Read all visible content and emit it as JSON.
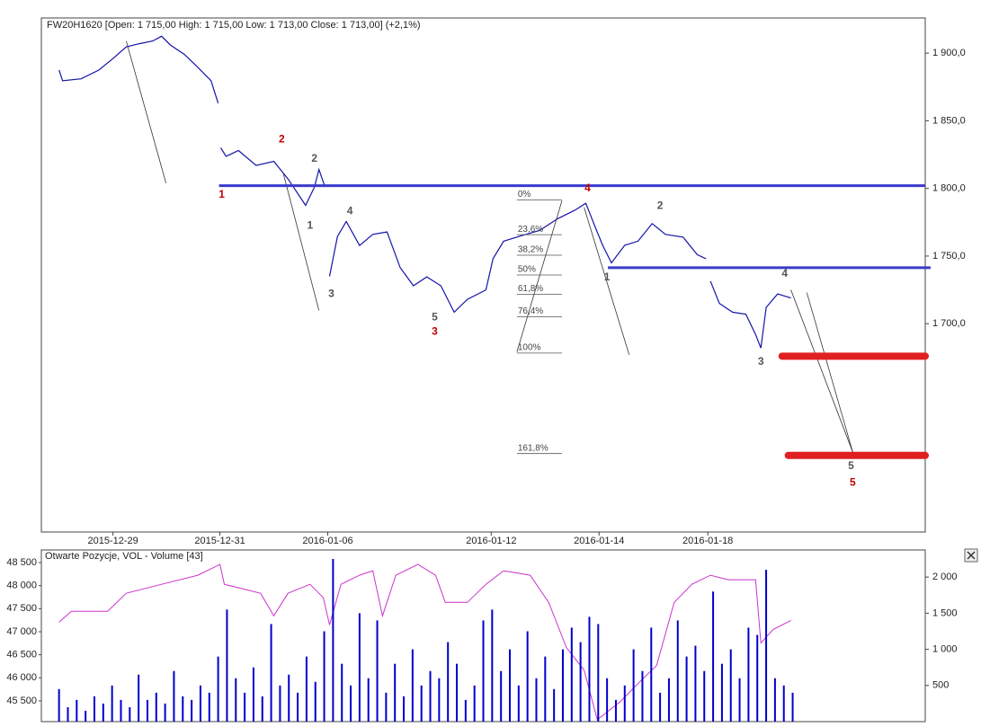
{
  "chart_data": [
    {
      "type": "line",
      "title": "FW20H1620 [Open: 1 715,00  High: 1 715,00  Low: 1 713,00  Close: 1 713,00] (+2,1%)",
      "xlim": [
        0,
        100
      ],
      "xticks": [
        {
          "value": 8.1,
          "label": "2015-12-29"
        },
        {
          "value": 20.2,
          "label": "2015-12-31"
        },
        {
          "value": 32.4,
          "label": "2016-01-06"
        },
        {
          "value": 50.9,
          "label": "2016-01-12"
        },
        {
          "value": 63.1,
          "label": "2016-01-14"
        },
        {
          "value": 75.4,
          "label": "2016-01-18"
        }
      ],
      "ylim": [
        1546,
        1926
      ],
      "yticks": [
        {
          "value": 1700,
          "label": "1 700,0"
        },
        {
          "value": 1750,
          "label": "1 750,0"
        },
        {
          "value": 1800,
          "label": "1 800,0"
        },
        {
          "value": 1850,
          "label": "1 850,0"
        },
        {
          "value": 1900,
          "label": "1 900,0"
        }
      ],
      "series": [
        {
          "color": "#1414a8",
          "x": [
            2.0,
            2.4,
            4.5,
            6.5,
            8.1,
            9.6,
            11.1,
            12.6,
            13.6,
            14.6,
            16.2,
            17.7,
            19.2,
            20.0,
            null,
            20.3,
            20.9,
            22.3,
            24.3,
            26.3,
            27.9,
            29.9,
            30.9,
            31.4,
            32.1,
            null,
            32.6,
            33.5,
            34.5,
            36.0,
            37.5,
            39.1,
            40.6,
            42.1,
            43.6,
            45.2,
            46.7,
            48.2,
            50.3,
            51.1,
            52.3,
            54.3,
            56.4,
            58.4,
            60.4,
            61.6,
            62.5,
            63.5,
            64.5,
            66.0,
            67.5,
            69.1,
            70.6,
            72.6,
            74.2,
            75.2,
            null,
            75.7,
            76.7,
            78.2,
            79.7,
            80.8,
            81.4,
            82.0,
            83.3,
            84.8
          ],
          "values": [
            1887.5,
            1879.6,
            1881,
            1887.5,
            1896,
            1904.6,
            1907,
            1909,
            1912.5,
            1906,
            1899,
            1889.5,
            1879.6,
            1863,
            null,
            1830,
            1823.7,
            1828,
            1817,
            1820,
            1807,
            1787.5,
            1801,
            1814,
            1801,
            null,
            1735,
            1764.5,
            1775.6,
            1757.8,
            1766,
            1767.8,
            1741.4,
            1728,
            1734.6,
            1728,
            1708.5,
            1718,
            1725,
            1748,
            1761,
            1765,
            1769,
            1777.6,
            1784,
            1789,
            1774,
            1758,
            1745,
            1758,
            1761,
            1774,
            1766,
            1764,
            1751,
            1748,
            null,
            1731.5,
            1715,
            1708.5,
            1707,
            1692,
            1682,
            1712,
            1722,
            1719
          ]
        }
      ],
      "hlines": [
        {
          "x": [
            20.1,
            100
          ],
          "y": 1802,
          "color": "#3a3acc",
          "width": 3
        },
        {
          "x": [
            64.1,
            100.6
          ],
          "y": 1741.4,
          "color": "#3a3acc",
          "width": 3
        },
        {
          "x": [
            83.8,
            100
          ],
          "y": 1676,
          "color": "#e02020",
          "width": 8
        },
        {
          "x": [
            84.5,
            100
          ],
          "y": 1602.6,
          "color": "#e02020",
          "width": 8
        }
      ],
      "trendlines": [
        {
          "x": [
            9.6,
            14.1
          ],
          "y": [
            1909,
            1803.9
          ]
        },
        {
          "x": [
            27.4,
            31.4
          ],
          "y": [
            1810.5,
            1709.8
          ]
        },
        {
          "x": [
            61.4,
            66.5
          ],
          "y": [
            1786,
            1677
          ]
        },
        {
          "x": [
            84.8,
            91.8
          ],
          "y": [
            1725,
            1605
          ]
        },
        {
          "x": [
            86.6,
            91.8
          ],
          "y": [
            1723,
            1605
          ]
        },
        {
          "x": [
            53.8,
            58.9
          ],
          "y": [
            1679,
            1791
          ]
        }
      ],
      "fibonacci": {
        "x": [
          53.8,
          58.9
        ],
        "levels": [
          {
            "label": "0%",
            "y": 1791.4
          },
          {
            "label": "23,6%",
            "y": 1765.8
          },
          {
            "label": "38,2%",
            "y": 1750.6
          },
          {
            "label": "50%",
            "y": 1736
          },
          {
            "label": "61,8%",
            "y": 1721.7
          },
          {
            "label": "76,4%",
            "y": 1705.2
          },
          {
            "label": "100%",
            "y": 1678.3
          },
          {
            "label": "161,8%",
            "y": 1604
          }
        ]
      },
      "annotations": [
        {
          "text": "1",
          "x": 20.4,
          "y": 1795.4,
          "color": "#c00000"
        },
        {
          "text": "2",
          "x": 27.2,
          "y": 1836.2,
          "color": "#c00000"
        },
        {
          "text": "2",
          "x": 30.9,
          "y": 1821.7,
          "color": "#555555"
        },
        {
          "text": "1",
          "x": 30.4,
          "y": 1772.3,
          "color": "#555555"
        },
        {
          "text": "3",
          "x": 32.8,
          "y": 1721.7,
          "color": "#555555"
        },
        {
          "text": "4",
          "x": 34.9,
          "y": 1782.9,
          "color": "#555555"
        },
        {
          "text": "5",
          "x": 44.5,
          "y": 1704.6,
          "color": "#555555"
        },
        {
          "text": "3",
          "x": 44.5,
          "y": 1694,
          "color": "#c00000"
        },
        {
          "text": "4",
          "x": 61.8,
          "y": 1800,
          "color": "#c00000"
        },
        {
          "text": "2",
          "x": 70,
          "y": 1786.8,
          "color": "#555555"
        },
        {
          "text": "1",
          "x": 64,
          "y": 1734,
          "color": "#555555"
        },
        {
          "text": "4",
          "x": 84.1,
          "y": 1736.8,
          "color": "#555555"
        },
        {
          "text": "3",
          "x": 81.4,
          "y": 1671.7,
          "color": "#555555"
        },
        {
          "text": "5",
          "x": 91.6,
          "y": 1594.7,
          "color": "#555555"
        },
        {
          "text": "5",
          "x": 91.8,
          "y": 1582.2,
          "color": "#c00000"
        }
      ]
    },
    {
      "type": "combo",
      "title": "Otwarte Pozycje, VOL - Volume [43]",
      "xlim": [
        0,
        100
      ],
      "ylim": [
        45050,
        48774
      ],
      "yticks": [
        {
          "value": 45500,
          "label": "45 500"
        },
        {
          "value": 46000,
          "label": "46 000"
        },
        {
          "value": 46500,
          "label": "46 500"
        },
        {
          "value": 47000,
          "label": "47 000"
        },
        {
          "value": 47500,
          "label": "47 500"
        },
        {
          "value": 48000,
          "label": "48 000"
        },
        {
          "value": 48500,
          "label": "48 500"
        }
      ],
      "y2lim": [
        0,
        2375
      ],
      "y2ticks": [
        500,
        {
          "value": 1000,
          "label": "1 000"
        },
        {
          "value": 1500,
          "label": "1 500"
        },
        {
          "value": 2000,
          "label": "2 000"
        }
      ],
      "series": [
        {
          "type": "line",
          "color": "#cc33cc",
          "x": [
            2.0,
            3.4,
            7.5,
            9.6,
            13.6,
            17.7,
            20.2,
            20.7,
            24.8,
            26.3,
            27.9,
            30.4,
            31.9,
            32.6,
            33.9,
            36.0,
            37.5,
            38.6,
            40.1,
            42.6,
            44.6,
            45.7,
            48.2,
            50.3,
            52.3,
            55.3,
            57.4,
            59.4,
            61.4,
            62.9,
            65.5,
            67.5,
            69.6,
            71.6,
            73.6,
            75.7,
            77.7,
            80.8,
            81.4,
            82.8,
            84.8
          ],
          "values": [
            47206,
            47442,
            47442,
            47834,
            48030,
            48226,
            48461,
            48030,
            47834,
            47344,
            47834,
            48030,
            47736,
            47148,
            48030,
            48226,
            48324,
            47344,
            48226,
            48461,
            48226,
            47638,
            47638,
            48030,
            48324,
            48226,
            47638,
            46658,
            46168,
            45090,
            45482,
            45874,
            46266,
            47638,
            48030,
            48226,
            48128,
            48128,
            46756,
            47050,
            47246
          ]
        },
        {
          "type": "bar",
          "axis": "y2",
          "color": "#0000cc",
          "x": [
            2,
            3,
            4,
            5,
            6,
            7,
            8,
            9,
            10,
            11,
            12,
            13,
            14,
            15,
            16,
            17,
            18,
            19,
            20,
            21,
            22,
            23,
            24,
            25,
            26,
            27,
            28,
            29,
            30,
            31,
            32,
            33,
            34,
            35,
            36,
            37,
            38,
            39,
            40,
            41,
            42,
            43,
            44,
            45,
            46,
            47,
            48,
            49,
            50,
            51,
            52,
            53,
            54,
            55,
            56,
            57,
            58,
            59,
            60,
            61,
            62,
            63,
            64,
            65,
            66,
            67,
            68,
            69,
            70,
            71,
            72,
            73,
            74,
            75,
            76,
            77,
            78,
            79,
            80,
            81,
            82,
            83,
            84,
            85
          ],
          "values": [
            450,
            200,
            300,
            150,
            350,
            250,
            500,
            300,
            200,
            650,
            300,
            400,
            250,
            700,
            350,
            300,
            500,
            400,
            900,
            1550,
            600,
            400,
            750,
            350,
            1350,
            500,
            650,
            400,
            900,
            550,
            1250,
            2250,
            800,
            500,
            1500,
            600,
            1400,
            400,
            800,
            350,
            1000,
            500,
            700,
            600,
            1100,
            800,
            300,
            500,
            1400,
            1550,
            700,
            1000,
            500,
            1250,
            600,
            900,
            450,
            1000,
            1300,
            1100,
            1450,
            1350,
            600,
            300,
            500,
            1000,
            700,
            1300,
            400,
            600,
            1400,
            900,
            1050,
            700,
            1800,
            800,
            1000,
            600,
            1300,
            1200,
            2100,
            600,
            500,
            400
          ]
        }
      ]
    }
  ]
}
